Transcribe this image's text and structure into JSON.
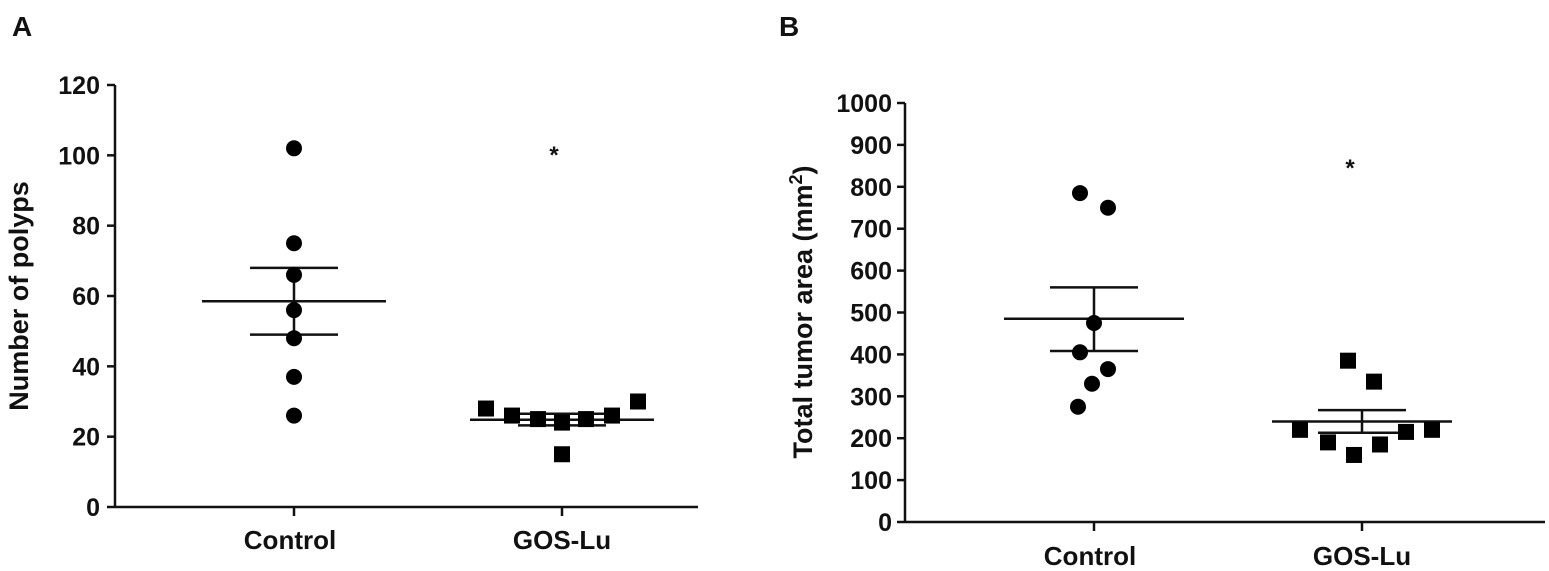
{
  "chart_data": [
    {
      "type": "scatter",
      "panel_label": "A",
      "ylabel": "Number of polyps",
      "ylim": [
        0,
        120
      ],
      "yticks": [
        0,
        20,
        40,
        60,
        80,
        100,
        120
      ],
      "categories": [
        "Control",
        "GOS-Lu"
      ],
      "groups": [
        {
          "category": "Control",
          "marker": "circle",
          "points": [
            102,
            75,
            66,
            56,
            48,
            37,
            26
          ],
          "mean": 58.5,
          "sem_upper": 68,
          "sem_lower": 49
        },
        {
          "category": "GOS-Lu",
          "marker": "square",
          "points": [
            28,
            26,
            25,
            24,
            25,
            26,
            30,
            15
          ],
          "mean": 24.8,
          "sem_upper": 26.5,
          "sem_lower": 23.2
        }
      ],
      "annotations": [
        {
          "text": "*",
          "category": "GOS-Lu",
          "y": 103
        }
      ]
    },
    {
      "type": "scatter",
      "panel_label": "B",
      "ylabel": "Total tumor area (mm",
      "ylabel_superscript": "2",
      "ylabel_suffix": ")",
      "ylim": [
        0,
        1000
      ],
      "yticks": [
        0,
        100,
        200,
        300,
        400,
        500,
        600,
        700,
        800,
        900,
        1000
      ],
      "categories": [
        "Control",
        "GOS-Lu"
      ],
      "groups": [
        {
          "category": "Control",
          "marker": "circle",
          "points": [
            785,
            750,
            475,
            405,
            365,
            330,
            275
          ],
          "mean": 485,
          "sem_upper": 560,
          "sem_lower": 408
        },
        {
          "category": "GOS-Lu",
          "marker": "square",
          "points": [
            220,
            190,
            160,
            385,
            335,
            185,
            215,
            220
          ],
          "mean": 240,
          "sem_upper": 267,
          "sem_lower": 213
        }
      ],
      "annotations": [
        {
          "text": "*",
          "category": "GOS-Lu",
          "y": 860
        }
      ]
    }
  ]
}
